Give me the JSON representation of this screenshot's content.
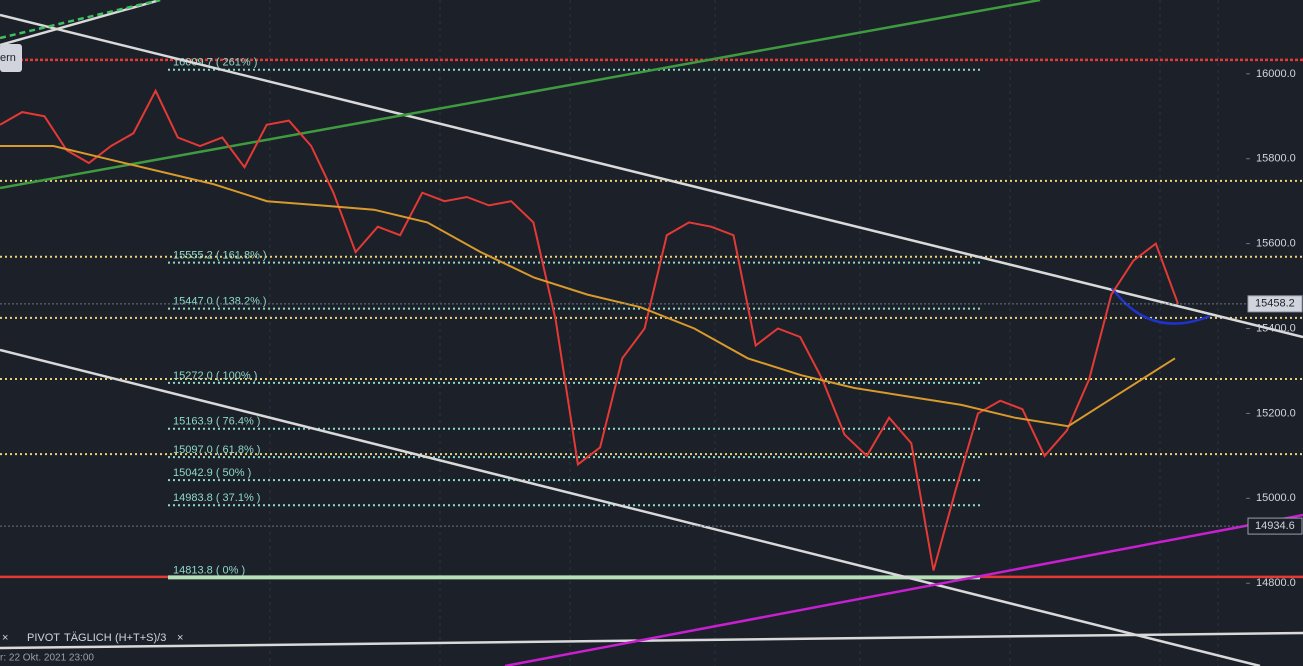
{
  "chart_data": {
    "type": "line",
    "ylim": [
      14605,
      16174
    ],
    "yticks": [
      {
        "value": 16000,
        "label": "16000.0"
      },
      {
        "value": 15800,
        "label": "15800.0"
      },
      {
        "value": 15600,
        "label": "15600.0"
      },
      {
        "value": 15400,
        "label": "15400.0"
      },
      {
        "value": 15200,
        "label": "15200.0"
      },
      {
        "value": 15000,
        "label": "15000.0"
      },
      {
        "value": 14800,
        "label": "14800.0"
      }
    ],
    "price_labels": [
      {
        "value": 15458.2,
        "label": "15458.2",
        "color": "#d1d4dc"
      },
      {
        "value": 14934.6,
        "label": "14934.6",
        "color": "#1b2029"
      }
    ],
    "fib_levels": [
      {
        "value": 16009.7,
        "label": "16009.7 ( 261% )"
      },
      {
        "value": 15555.2,
        "label": "15555.2 ( 161.8% )"
      },
      {
        "value": 15447.0,
        "label": "15447.0 ( 138.2% )"
      },
      {
        "value": 15272.0,
        "label": "15272.0 ( 100% )"
      },
      {
        "value": 15163.9,
        "label": "15163.9 ( 76.4% )"
      },
      {
        "value": 15097.0,
        "label": "15097.0 ( 61.8% )"
      },
      {
        "value": 15042.9,
        "label": "15042.9 ( 50% )"
      },
      {
        "value": 14983.8,
        "label": "14983.8 ( 37.1% )"
      },
      {
        "value": 14813.8,
        "label": "14813.8 ( 0% )"
      }
    ],
    "pivot_levels": {
      "color": "#e8d27a",
      "values": [
        15748,
        15569,
        15425,
        15281,
        15104
      ]
    },
    "red_levels": {
      "color": "#e53935",
      "values": [
        16033,
        14815
      ]
    },
    "series": [
      {
        "color": "#e53935",
        "values": [
          15880,
          15910,
          15900,
          15820,
          15790,
          15830,
          15860,
          15960,
          15850,
          15830,
          15850,
          15780,
          15880,
          15890,
          15830,
          15720,
          15580,
          15640,
          15620,
          15720,
          15700,
          15710,
          15690,
          15700,
          15650,
          15420,
          15080,
          15120,
          15330,
          15400,
          15620,
          15650,
          15640,
          15620,
          15360,
          15400,
          15380,
          15280,
          15150,
          15100,
          15190,
          15130,
          14830,
          15020,
          15200,
          15230,
          15210,
          15100,
          15160,
          15280,
          15480,
          15560,
          15600,
          15458.2
        ]
      },
      {
        "color": "#d99a2b",
        "values": [
          15830,
          15830,
          15800,
          15770,
          15740,
          15700,
          15690,
          15680,
          15650,
          15580,
          15520,
          15480,
          15450,
          15400,
          15330,
          15290,
          15260,
          15240,
          15220,
          15190,
          15170,
          15250,
          15330
        ]
      }
    ],
    "toolbar": {
      "close": "×",
      "name": "PIVOT",
      "period": "TÄGLICH",
      "formula": "(H+T+S)/3",
      "close2": "×"
    },
    "footer": "r: 22 Okt. 2021 23:00",
    "button": "ern"
  }
}
